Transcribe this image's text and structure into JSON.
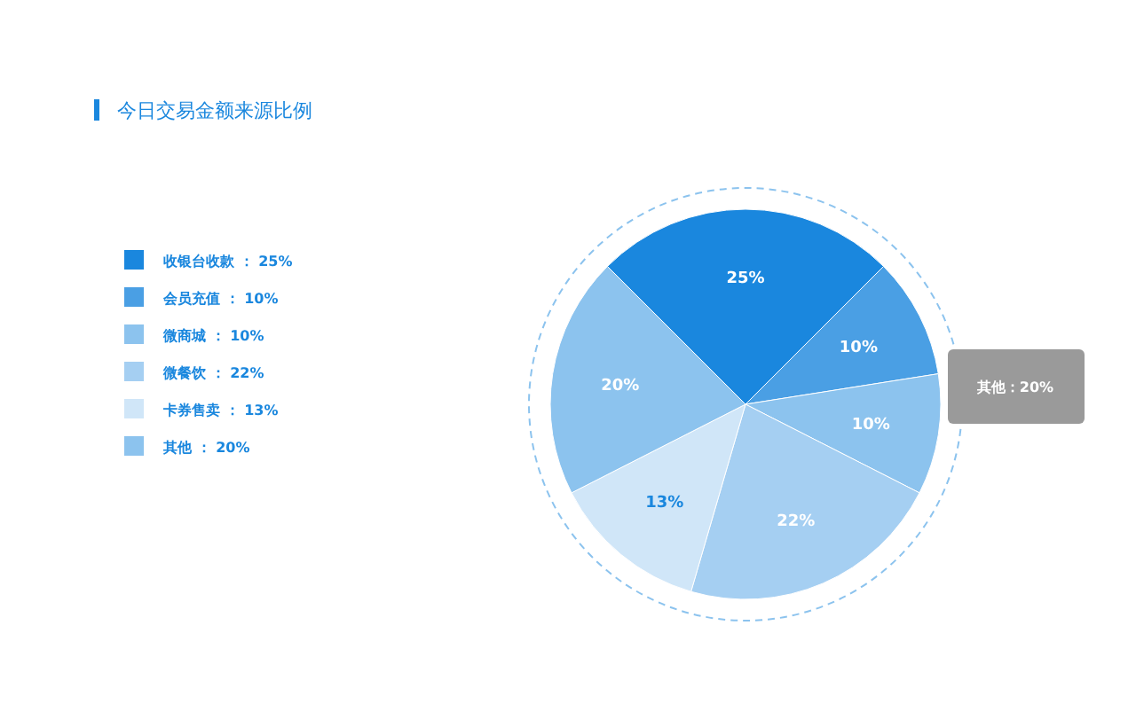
{
  "chart_data": {
    "type": "pie",
    "title": "今日交易金额来源比例",
    "categories": [
      "收银台收款",
      "会员充值",
      "微商城",
      "微餐饮",
      "卡券售卖",
      "其他"
    ],
    "values": [
      25,
      10,
      10,
      22,
      13,
      20
    ],
    "value_labels": [
      "25%",
      "10%",
      "10%",
      "22%",
      "13%",
      "20%"
    ],
    "colors": [
      "#1a87de",
      "#4a9fe4",
      "#8cc3ee",
      "#a5cff2",
      "#d0e6f8",
      "#8cc3ee"
    ],
    "legend": "left",
    "annotations": [
      "其他：20%"
    ]
  }
}
